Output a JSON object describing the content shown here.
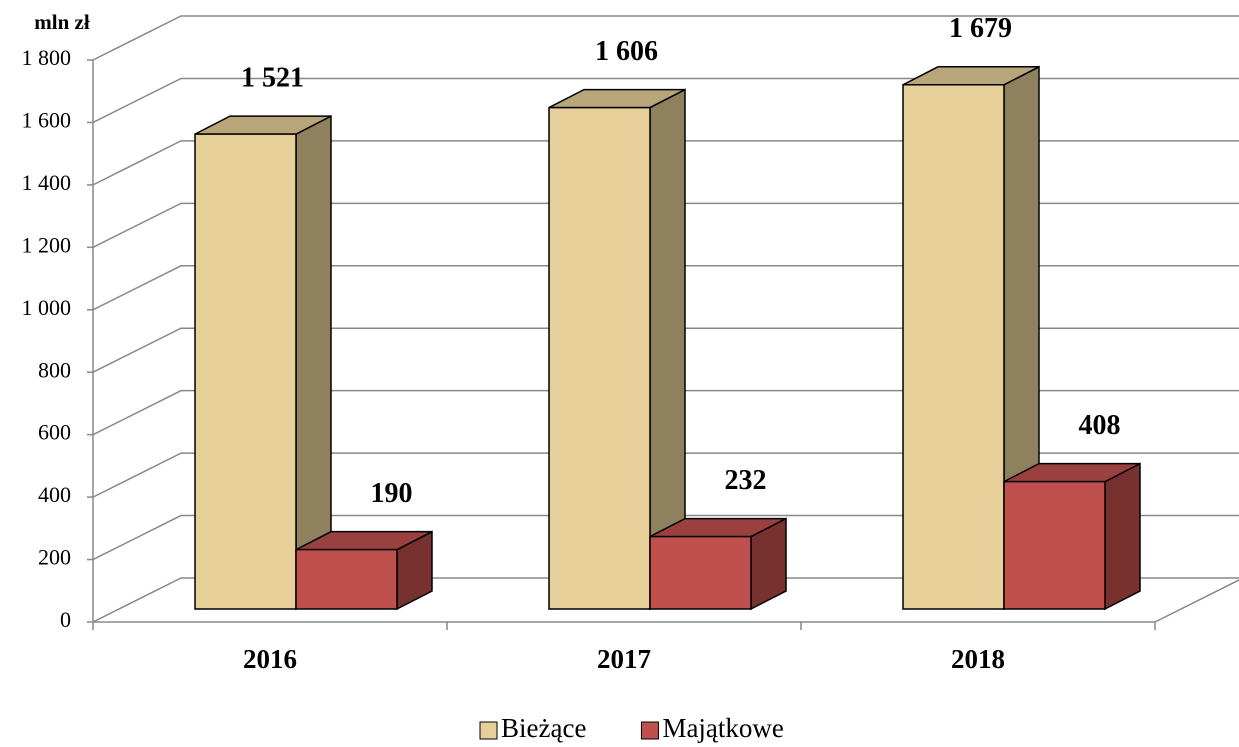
{
  "chart_data": {
    "type": "bar3d",
    "y_label": "mln zł",
    "categories": [
      "2016",
      "2017",
      "2018"
    ],
    "series": [
      {
        "name": "Bieżące",
        "color": "#e6cf98",
        "values": [
          1521,
          1606,
          1679
        ],
        "value_labels": [
          "1 521",
          "1 606",
          "1 679"
        ]
      },
      {
        "name": "Majątkowe",
        "color": "#c0504d",
        "values": [
          190,
          232,
          408
        ]
      }
    ],
    "ylim": [
      0,
      1800
    ],
    "yticks": [
      0,
      200,
      400,
      600,
      800,
      {
        "value": 1000,
        "label": "1 000"
      },
      {
        "value": 1200,
        "label": "1 200"
      },
      {
        "value": 1400,
        "label": "1 400"
      },
      {
        "value": 1600,
        "label": "1 600"
      },
      {
        "value": 1800,
        "label": "1 800"
      }
    ],
    "grid": true,
    "legend": "bottom"
  }
}
